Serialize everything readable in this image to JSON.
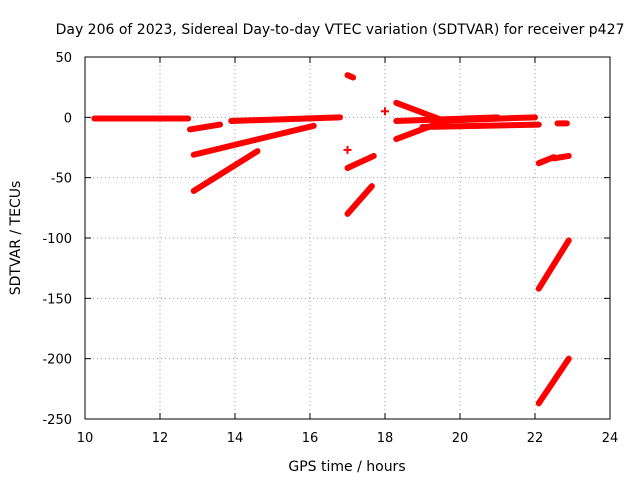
{
  "chart_data": {
    "type": "scatter",
    "title": "Day 206 of 2023, Sidereal Day-to-day VTEC variation (SDTVAR) for receiver p427",
    "xlabel": "GPS time / hours",
    "ylabel": "SDTVAR / TECUs",
    "xlim": [
      10,
      24
    ],
    "ylim": [
      -250,
      50
    ],
    "x_ticks": [
      10,
      12,
      14,
      16,
      18,
      20,
      22,
      24
    ],
    "y_ticks": [
      50,
      0,
      -50,
      -100,
      -150,
      -200,
      -250
    ],
    "grid": true,
    "color": "#ff0000",
    "series": [
      {
        "name": "track-1",
        "points": [
          [
            10.25,
            -1
          ],
          [
            12.75,
            -1
          ]
        ]
      },
      {
        "name": "track-2",
        "points": [
          [
            12.8,
            -10
          ],
          [
            13.6,
            -6
          ]
        ]
      },
      {
        "name": "track-3",
        "points": [
          [
            12.9,
            -31
          ],
          [
            16.1,
            -7
          ]
        ]
      },
      {
        "name": "track-4",
        "points": [
          [
            12.9,
            -61
          ],
          [
            14.6,
            -28
          ]
        ]
      },
      {
        "name": "track-5",
        "points": [
          [
            13.9,
            -3
          ],
          [
            16.8,
            0
          ]
        ]
      },
      {
        "name": "track-6",
        "points": [
          [
            17.0,
            35
          ],
          [
            17.15,
            33
          ]
        ]
      },
      {
        "name": "track-7",
        "points": [
          [
            17.0,
            -27
          ],
          [
            17.0,
            -27
          ]
        ]
      },
      {
        "name": "track-8",
        "points": [
          [
            17.0,
            -42
          ],
          [
            17.7,
            -32
          ]
        ]
      },
      {
        "name": "track-9",
        "points": [
          [
            17.0,
            -80
          ],
          [
            17.65,
            -57
          ]
        ]
      },
      {
        "name": "track-10",
        "points": [
          [
            18.0,
            5
          ],
          [
            18.0,
            5
          ]
        ]
      },
      {
        "name": "track-11",
        "points": [
          [
            18.3,
            12
          ],
          [
            19.5,
            -2
          ]
        ]
      },
      {
        "name": "track-12",
        "points": [
          [
            18.3,
            -18
          ],
          [
            19.5,
            -4
          ]
        ]
      },
      {
        "name": "track-13",
        "points": [
          [
            18.3,
            -3
          ],
          [
            21.0,
            0
          ]
        ]
      },
      {
        "name": "track-14",
        "points": [
          [
            19.3,
            -3
          ],
          [
            22.0,
            0
          ]
        ]
      },
      {
        "name": "track-15",
        "points": [
          [
            19.0,
            -8
          ],
          [
            22.1,
            -6
          ]
        ]
      },
      {
        "name": "track-16",
        "points": [
          [
            22.1,
            -38
          ],
          [
            22.5,
            -33
          ]
        ]
      },
      {
        "name": "track-17",
        "points": [
          [
            22.5,
            -34
          ],
          [
            22.9,
            -32
          ]
        ]
      },
      {
        "name": "track-18",
        "points": [
          [
            22.6,
            -5
          ],
          [
            22.85,
            -5
          ]
        ]
      },
      {
        "name": "track-19",
        "points": [
          [
            22.1,
            -142
          ],
          [
            22.9,
            -102
          ]
        ]
      },
      {
        "name": "track-20",
        "points": [
          [
            22.1,
            -237
          ],
          [
            22.9,
            -200
          ]
        ]
      }
    ]
  }
}
